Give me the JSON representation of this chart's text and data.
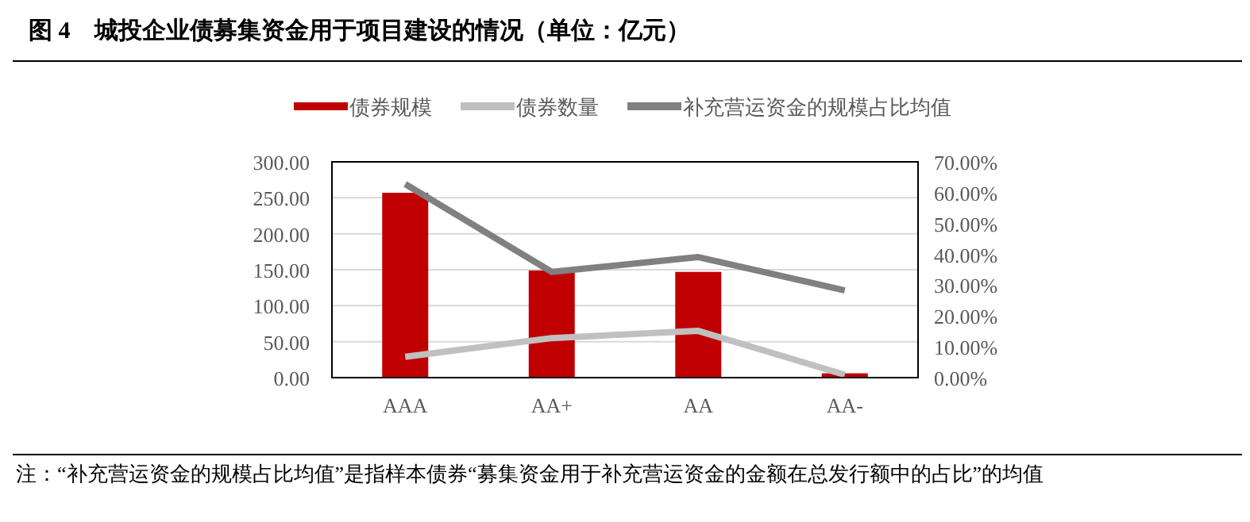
{
  "chart_data": {
    "type": "bar",
    "title": "图 4　城投企业债募集资金用于项目建设的情况（单位：亿元）",
    "categories": [
      "AAA",
      "AA+",
      "AA",
      "AA-"
    ],
    "series": [
      {
        "name": "债券规模",
        "color": "#c00000",
        "values": [
          257,
          149,
          147,
          6
        ]
      },
      {
        "name": "债券数量",
        "type": "line",
        "color": "#c0c0c0",
        "values": [
          29,
          55,
          65,
          4
        ]
      },
      {
        "name": "补充营运资金的规模占比均值",
        "type": "line",
        "axis": "y2",
        "color": "#808080",
        "values": [
          62.8,
          34.3,
          39.1,
          28.3
        ]
      }
    ],
    "ylim": [
      0,
      300
    ],
    "yticks": [
      {
        "value": 0,
        "label": "0.00"
      },
      {
        "value": 50,
        "label": "50.00"
      },
      {
        "value": 100,
        "label": "100.00"
      },
      {
        "value": 150,
        "label": "150.00"
      },
      {
        "value": 200,
        "label": "200.00"
      },
      {
        "value": 250,
        "label": "250.00"
      },
      {
        "value": 300,
        "label": "300.00"
      }
    ],
    "y2lim": [
      0,
      70
    ],
    "y2ticks": [
      {
        "value": 0,
        "label": "0.00%"
      },
      {
        "value": 10,
        "label": "10.00%"
      },
      {
        "value": 20,
        "label": "20.00%"
      },
      {
        "value": 30,
        "label": "30.00%"
      },
      {
        "value": 40,
        "label": "40.00%"
      },
      {
        "value": 50,
        "label": "50.00%"
      },
      {
        "value": 60,
        "label": "60.00%"
      },
      {
        "value": 70,
        "label": "70.00%"
      }
    ],
    "grid": "y",
    "legend": "top",
    "marker": "none",
    "annotations": [
      "注：“补充营运资金的规模占比均值”是指样本债券“募集资金用于补充营运资金的金额在总发行额中的占比”的均值"
    ]
  }
}
